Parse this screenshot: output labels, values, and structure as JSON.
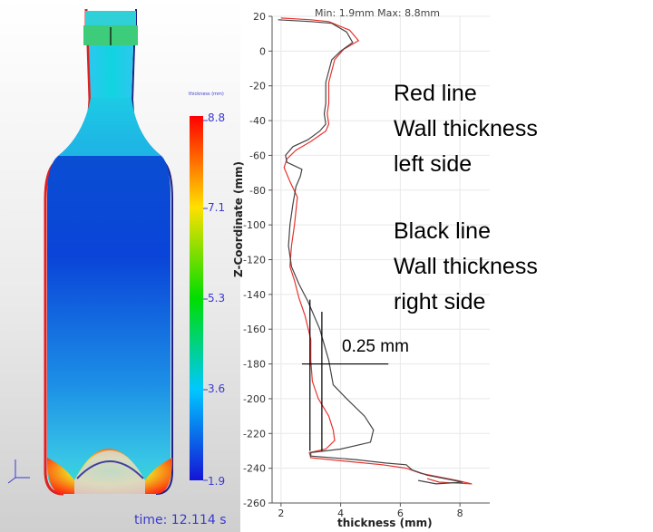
{
  "simulation": {
    "colorbar_title": "thickness (mm)",
    "colorbar_ticks": [
      "8.8",
      "7.1",
      "5.3",
      "3.6",
      "1.9"
    ],
    "time_label": "time: 12.114 s",
    "colors": {
      "low": "#1a1ad8",
      "high": "#ff0000",
      "label": "#3a3ad0"
    }
  },
  "annotations": {
    "red_lines": [
      "Red line",
      "Wall thickness",
      "left side"
    ],
    "black_lines": [
      "Black line",
      "Wall thickness",
      "right side"
    ]
  },
  "plot_header": "Min: 1.9mm  Max: 8.8mm",
  "scale_marker": "0.25 mm",
  "chart_data": {
    "type": "line",
    "xlabel": "thickness (mm)",
    "ylabel": "Z-Coordinate (mm)",
    "xlim": [
      1.7,
      9.0
    ],
    "ylim": [
      -260,
      20
    ],
    "xticks": [
      2,
      4,
      6,
      8
    ],
    "yticks": [
      20,
      0,
      -20,
      -40,
      -60,
      -80,
      -100,
      -120,
      -140,
      -160,
      -180,
      -200,
      -220,
      -240,
      -260
    ],
    "grid": true,
    "series": [
      {
        "name": "Red line",
        "color": "#e8322e",
        "points": [
          [
            2.0,
            19
          ],
          [
            3.0,
            18
          ],
          [
            3.6,
            17
          ],
          [
            4.3,
            12
          ],
          [
            4.6,
            6
          ],
          [
            4.1,
            1
          ],
          [
            3.8,
            -5
          ],
          [
            3.6,
            -18
          ],
          [
            3.6,
            -30
          ],
          [
            3.55,
            -36
          ],
          [
            3.6,
            -42
          ],
          [
            3.5,
            -46
          ],
          [
            3.0,
            -52
          ],
          [
            2.5,
            -57
          ],
          [
            2.2,
            -62
          ],
          [
            2.1,
            -67
          ],
          [
            2.3,
            -75
          ],
          [
            2.55,
            -84
          ],
          [
            2.5,
            -92
          ],
          [
            2.45,
            -100
          ],
          [
            2.35,
            -112
          ],
          [
            2.3,
            -124
          ],
          [
            2.45,
            -132
          ],
          [
            2.6,
            -142
          ],
          [
            2.8,
            -152
          ],
          [
            3.0,
            -166
          ],
          [
            3.0,
            -178
          ],
          [
            3.05,
            -190
          ],
          [
            3.25,
            -200
          ],
          [
            3.6,
            -210
          ],
          [
            3.75,
            -218
          ],
          [
            3.8,
            -224
          ],
          [
            3.5,
            -229
          ],
          [
            2.95,
            -231
          ],
          [
            3.0,
            -234
          ],
          [
            4.2,
            -236
          ],
          [
            5.4,
            -238
          ],
          [
            6.2,
            -240
          ],
          [
            6.7,
            -243
          ],
          [
            7.3,
            -245
          ],
          [
            7.9,
            -247
          ],
          [
            8.4,
            -249
          ],
          [
            7.3,
            -248
          ],
          [
            6.9,
            -246
          ]
        ]
      },
      {
        "name": "Black line",
        "color": "#444444",
        "points": [
          [
            1.9,
            18
          ],
          [
            3.0,
            17
          ],
          [
            3.7,
            16
          ],
          [
            4.2,
            11
          ],
          [
            4.4,
            5
          ],
          [
            4.0,
            0
          ],
          [
            3.7,
            -5
          ],
          [
            3.5,
            -18
          ],
          [
            3.5,
            -30
          ],
          [
            3.45,
            -36
          ],
          [
            3.5,
            -42
          ],
          [
            3.3,
            -46
          ],
          [
            2.9,
            -51
          ],
          [
            2.4,
            -55
          ],
          [
            2.15,
            -60
          ],
          [
            2.2,
            -64
          ],
          [
            2.7,
            -68
          ],
          [
            2.65,
            -72
          ],
          [
            2.5,
            -78
          ],
          [
            2.4,
            -88
          ],
          [
            2.3,
            -100
          ],
          [
            2.25,
            -112
          ],
          [
            2.35,
            -124
          ],
          [
            2.6,
            -134
          ],
          [
            2.9,
            -144
          ],
          [
            3.3,
            -160
          ],
          [
            3.6,
            -178
          ],
          [
            3.75,
            -192
          ],
          [
            4.2,
            -200
          ],
          [
            4.8,
            -210
          ],
          [
            5.1,
            -218
          ],
          [
            5.0,
            -225
          ],
          [
            4.0,
            -229
          ],
          [
            3.0,
            -231
          ],
          [
            3.0,
            -233
          ],
          [
            4.5,
            -235
          ],
          [
            5.5,
            -237
          ],
          [
            6.2,
            -238
          ],
          [
            6.4,
            -241
          ],
          [
            6.9,
            -244
          ],
          [
            7.5,
            -246
          ],
          [
            8.1,
            -248
          ],
          [
            7.2,
            -249
          ],
          [
            6.6,
            -247
          ]
        ]
      }
    ],
    "crosshair": {
      "x": 3.1,
      "y": -180,
      "x_left": 2.97,
      "x_right": 3.37
    }
  }
}
